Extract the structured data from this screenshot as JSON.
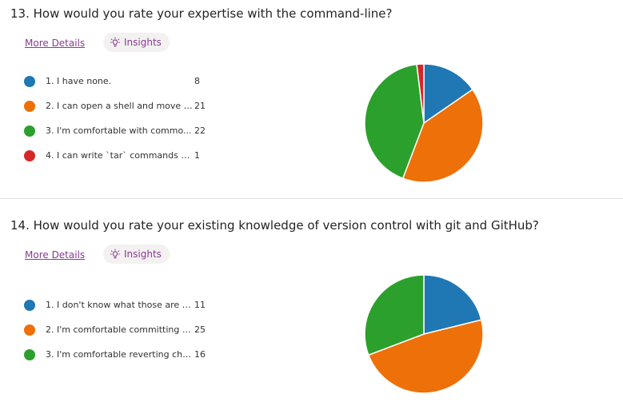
{
  "questions": [
    {
      "title": "13.  How would you rate your expertise with the command-line?",
      "more_details": "More Details",
      "insights": "Insights",
      "options": [
        {
          "label": "1. I have none.",
          "count": "8",
          "color": "#1f77b4"
        },
        {
          "label": "2. I can open a shell and move b...",
          "count": "21",
          "color": "#ed7008"
        },
        {
          "label": "3. I'm comfortable with commo...",
          "count": "22",
          "color": "#2ca02c"
        },
        {
          "label": "4. I can write `tar` commands wit...",
          "count": "1",
          "color": "#d62728"
        }
      ]
    },
    {
      "title": "14.  How would you rate your existing knowledge of version control with git and GitHub?",
      "more_details": "More Details",
      "insights": "Insights",
      "options": [
        {
          "label": "1. I don't know what those are o...",
          "count": "11",
          "color": "#1f77b4"
        },
        {
          "label": "2. I'm comfortable committing c...",
          "count": "25",
          "color": "#ed7008"
        },
        {
          "label": "3. I'm comfortable reverting cha...",
          "count": "16",
          "color": "#2ca02c"
        }
      ]
    }
  ],
  "chart_data": [
    {
      "type": "pie",
      "title": "13.  How would you rate your expertise with the command-line?",
      "categories": [
        "1. I have none.",
        "2. I can open a shell and move b...",
        "3. I'm comfortable with commo...",
        "4. I can write `tar` commands wit..."
      ],
      "values": [
        8,
        21,
        22,
        1
      ],
      "colors": [
        "#1f77b4",
        "#ed7008",
        "#2ca02c",
        "#d62728"
      ]
    },
    {
      "type": "pie",
      "title": "14.  How would you rate your existing knowledge of version control with git and GitHub?",
      "categories": [
        "1. I don't know what those are o...",
        "2. I'm comfortable committing c...",
        "3. I'm comfortable reverting cha..."
      ],
      "values": [
        11,
        25,
        16
      ],
      "colors": [
        "#1f77b4",
        "#ed7008",
        "#2ca02c"
      ]
    }
  ]
}
